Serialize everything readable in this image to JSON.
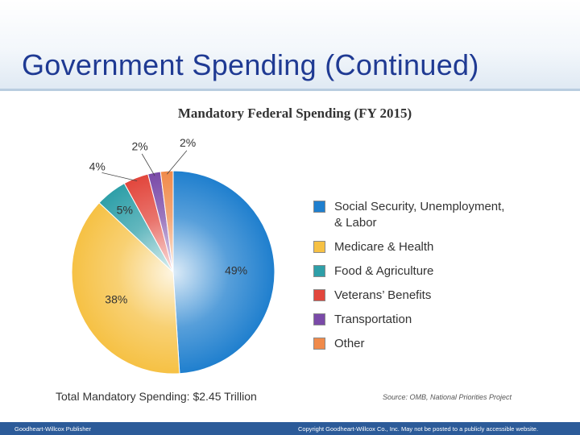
{
  "slide": {
    "title": "Government Spending (Continued)"
  },
  "chart_data": {
    "type": "pie",
    "title": "Mandatory Federal Spending (FY 2015)",
    "slices": [
      {
        "label": "Social Security, Unemployment,\n& Labor",
        "value": 49,
        "display": "49%",
        "color": "#1f7fce"
      },
      {
        "label": "Medicare & Health",
        "value": 38,
        "display": "38%",
        "color": "#f6c144"
      },
      {
        "label": "Food & Agriculture",
        "value": 5,
        "display": "5%",
        "color": "#2e9fa8"
      },
      {
        "label": "Veterans’ Benefits",
        "value": 4,
        "display": "4%",
        "color": "#e2463c"
      },
      {
        "label": "Transportation",
        "value": 2,
        "display": "2%",
        "color": "#7a4aa8"
      },
      {
        "label": "Other",
        "value": 2,
        "display": "2%",
        "color": "#f08a4a"
      }
    ],
    "legend_position": "right",
    "total_label": "Total Mandatory Spending: $2.45 Trillion",
    "source": "Source: OMB, National Priorities Project"
  },
  "footer": {
    "left": "Goodheart-Willcox Publisher",
    "right": "Copyright Goodheart-Willcox Co., Inc.  May not be posted to a publicly accessible website."
  }
}
